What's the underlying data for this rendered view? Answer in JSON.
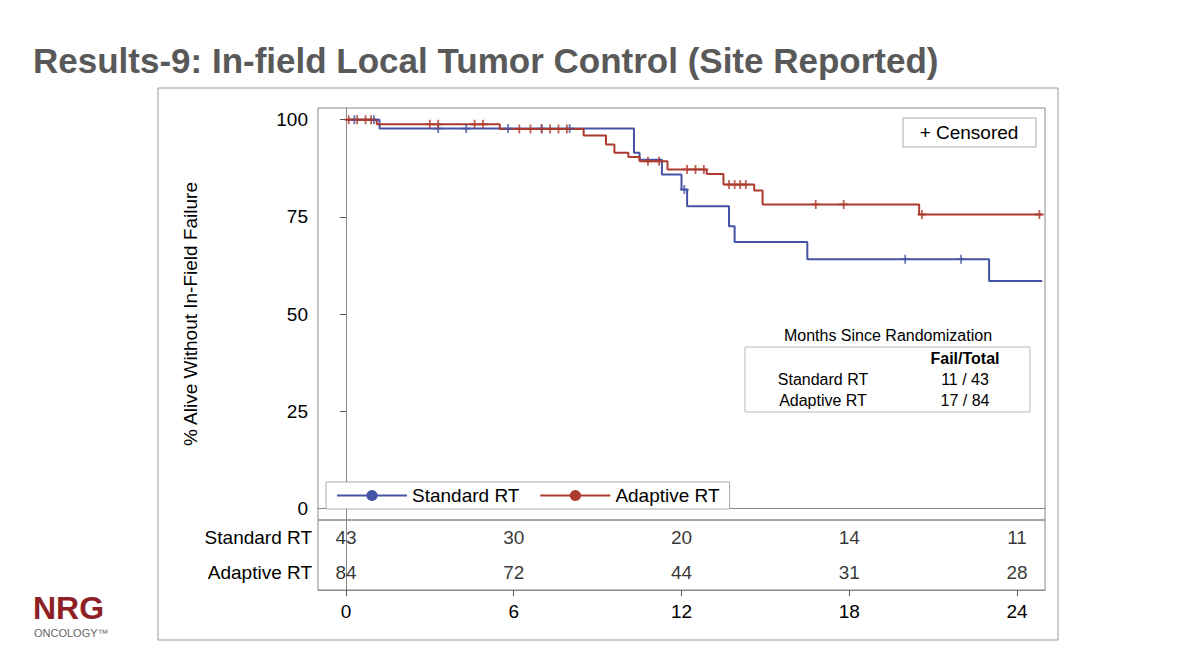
{
  "chart_data": {
    "type": "line",
    "title": "Results-9: In-field Local Tumor Control (Site Reported)",
    "y_label": "% Alive Without In-Field Failure",
    "xlim": [
      -1,
      25
    ],
    "xticks": [
      0,
      6,
      12,
      18,
      24
    ],
    "ylim": [
      -3,
      103
    ],
    "yticks": [
      0,
      25,
      50,
      75,
      100
    ],
    "grid": false,
    "legend": "lower left",
    "series": [
      {
        "name": "Standard RT",
        "color": "#4453a3",
        "line_style": "step",
        "marker": "plus",
        "x": [
          0,
          1.2,
          10.3,
          10.5,
          11.3,
          12.0,
          12.2,
          13.7,
          13.9,
          16.5,
          23.0,
          24.9
        ],
        "values": [
          100,
          97.7,
          91.5,
          89.7,
          85.9,
          82.0,
          77.7,
          72.6,
          68.5,
          64.1,
          58.5,
          58.5
        ],
        "censored_x": [
          0.3,
          1.0,
          3.3,
          4.3,
          5.8,
          7.0,
          8.0,
          12.1,
          20.0,
          22.0
        ],
        "censored_values": [
          100,
          100,
          97.7,
          97.7,
          97.7,
          97.7,
          97.7,
          82.0,
          64.1,
          64.1
        ]
      },
      {
        "name": "Adaptive RT",
        "color": "#ad3a2e",
        "line_style": "step",
        "marker": "plus",
        "x": [
          0,
          1.1,
          5.5,
          8.5,
          9.3,
          9.6,
          10.1,
          10.5,
          11.5,
          12.9,
          13.5,
          14.6,
          14.9,
          20.5,
          24.9
        ],
        "values": [
          100,
          98.8,
          97.6,
          95.9,
          93.6,
          91.5,
          90.4,
          89.3,
          87.2,
          86.0,
          83.3,
          81.8,
          78.2,
          75.6,
          75.6
        ],
        "censored_x": [
          0.1,
          0.4,
          0.7,
          0.9,
          3.0,
          3.3,
          4.6,
          4.9,
          6.2,
          6.6,
          7.0,
          7.3,
          7.6,
          7.9,
          10.8,
          11.2,
          12.2,
          12.5,
          12.8,
          13.7,
          13.9,
          14.1,
          14.3,
          16.8,
          17.8,
          20.6,
          24.8
        ],
        "censored_values": [
          100,
          100,
          100,
          100,
          98.8,
          98.8,
          98.8,
          98.8,
          97.6,
          97.6,
          97.6,
          97.6,
          97.6,
          97.6,
          89.3,
          89.3,
          87.2,
          87.2,
          87.2,
          83.3,
          83.3,
          83.3,
          83.3,
          78.2,
          78.2,
          75.6,
          75.6
        ]
      }
    ],
    "censor_legend": "+ Censored",
    "fail_table": {
      "title": "Months Since Randomization",
      "header": "Fail/Total",
      "rows": [
        [
          "Standard RT",
          "11 / 43"
        ],
        [
          "Adaptive RT",
          "17 / 84"
        ]
      ]
    },
    "at_risk": {
      "x": [
        0,
        6,
        12,
        18,
        24
      ],
      "rows": [
        {
          "name": "Standard RT",
          "values": [
            43,
            30,
            20,
            14,
            11
          ]
        },
        {
          "name": "Adaptive RT",
          "values": [
            84,
            72,
            44,
            31,
            28
          ]
        }
      ]
    },
    "logo": {
      "text": "NRG",
      "subtext": "ONCOLOGY™"
    }
  }
}
